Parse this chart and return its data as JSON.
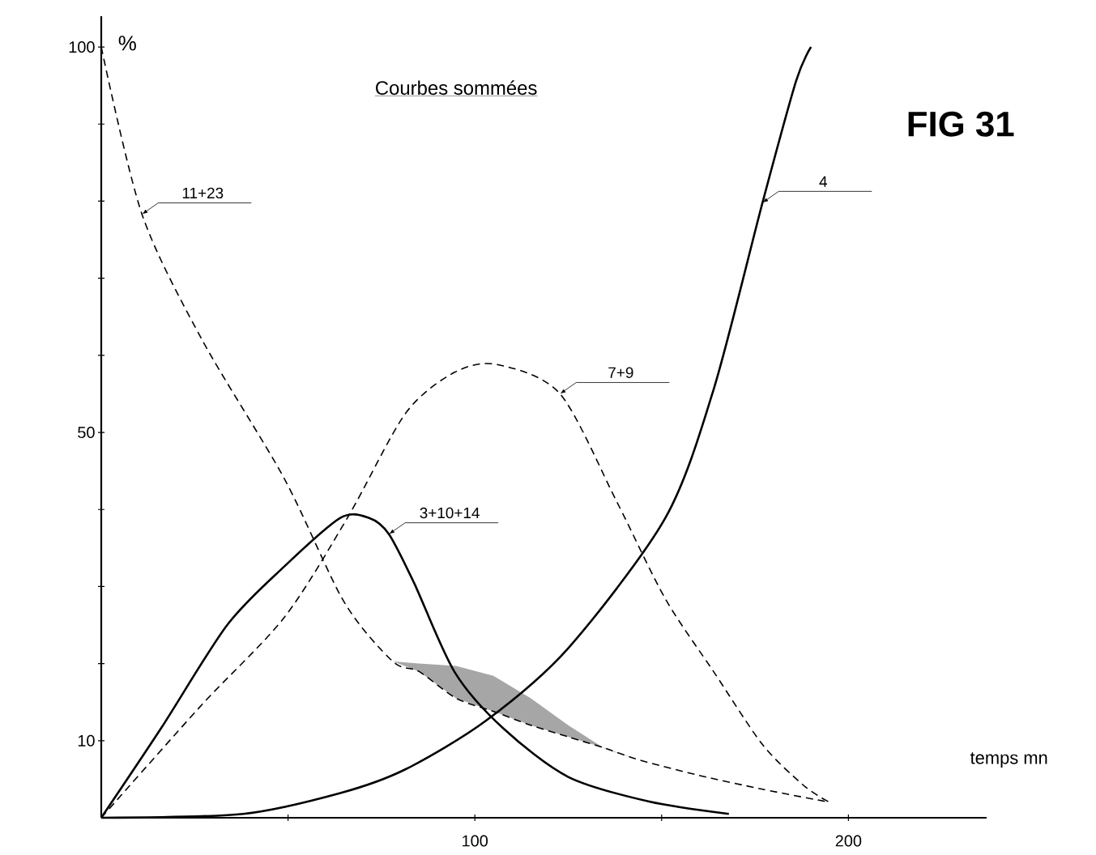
{
  "chart_data": {
    "type": "line",
    "title": "Courbes sommées",
    "xlabel": "temps mn",
    "ylabel": "%",
    "annotations": [
      "FIG 31"
    ],
    "xlim": [
      0,
      237
    ],
    "ylim": [
      0,
      104
    ],
    "xticks": [
      {
        "value": 50,
        "label": null
      },
      100,
      {
        "value": 150,
        "label": null
      },
      200
    ],
    "yticks": [
      10,
      {
        "value": 20,
        "label": null
      },
      {
        "value": 30,
        "label": null
      },
      {
        "value": 40,
        "label": null
      },
      50,
      {
        "value": 60,
        "label": null
      },
      {
        "value": 70,
        "label": null
      },
      {
        "value": 80,
        "label": null
      },
      {
        "value": 90,
        "label": null
      },
      100
    ],
    "marker": "none",
    "series": [
      {
        "name": "11+23",
        "color": "#000000",
        "line_style": "dashed",
        "x": [
          0,
          10.9,
          27,
          49,
          65,
          78,
          85,
          95,
          105,
          115,
          125,
          135,
          144,
          160,
          177,
          194
        ],
        "values": [
          100,
          78.3,
          62,
          44,
          28,
          20.3,
          19,
          15.5,
          13.8,
          12,
          10.5,
          9,
          7.5,
          5.5,
          3.7,
          2.1
        ],
        "lower": [
          null,
          null,
          null,
          null,
          null,
          20.3,
          19,
          15.5,
          13.8,
          12,
          10.5,
          9,
          7.5,
          null,
          null,
          null
        ],
        "upper": [
          null,
          null,
          null,
          null,
          null,
          20.3,
          20,
          19.7,
          18.4,
          15.5,
          12,
          8.9,
          7.5,
          null,
          null,
          null
        ]
      },
      {
        "name": "7+9",
        "color": "#000000",
        "line_style": "dashed",
        "x": [
          0,
          27,
          49,
          66,
          81.5,
          94.6,
          106,
          122.8,
          138,
          151,
          164,
          177,
          188,
          194.6
        ],
        "values": [
          0,
          14.7,
          26,
          39,
          52.5,
          57.8,
          58.8,
          55,
          41,
          28.4,
          18.9,
          9.5,
          4.2,
          2.1
        ]
      },
      {
        "name": "3+10+14",
        "color": "#000000",
        "line_style": "solid",
        "x": [
          0,
          16,
          33.7,
          49,
          64,
          71.7,
          77,
          83.7,
          94.6,
          107.6,
          125,
          146.7,
          168
        ],
        "values": [
          0,
          11.6,
          25,
          32.6,
          38.9,
          38.9,
          36.8,
          30.5,
          18.9,
          11.6,
          5.3,
          2.1,
          0.5
        ]
      },
      {
        "name": "4",
        "color": "#000000",
        "line_style": "solid",
        "x": [
          0,
          38,
          64,
          81.5,
          103,
          125,
          151,
          164,
          177,
          186,
          190
        ],
        "values": [
          0,
          0.5,
          3.2,
          6.3,
          12.6,
          22,
          38.9,
          55.7,
          79.8,
          95.6,
          100
        ]
      }
    ]
  }
}
